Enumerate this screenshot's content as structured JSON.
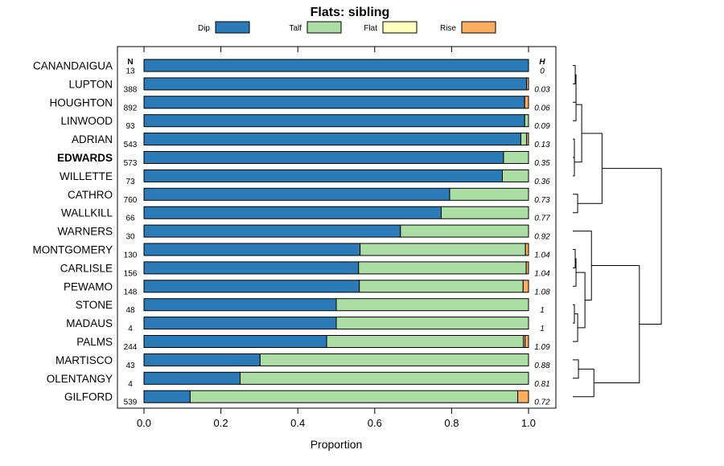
{
  "chart_data": {
    "type": "bar",
    "orientation": "horizontal",
    "stacked": true,
    "title": "Flats: sibling",
    "xlabel": "Proportion",
    "ylabel": "",
    "xlim": [
      0,
      1
    ],
    "xticks": [
      "0.0",
      "0.2",
      "0.4",
      "0.6",
      "0.8",
      "1.0"
    ],
    "legend": {
      "placement": "top",
      "entries": [
        {
          "name": "Dip",
          "color": "#2b7bb9"
        },
        {
          "name": "Talf",
          "color": "#abdda4"
        },
        {
          "name": "Flat",
          "color": "#ffffbf"
        },
        {
          "name": "Rise",
          "color": "#fdae61"
        }
      ]
    },
    "n_header": "N",
    "h_header": "H",
    "categories": [
      {
        "name": "CANANDAIGUA",
        "bold": false,
        "n": "13",
        "h": "0",
        "values": [
          1.0,
          0.0,
          0.0,
          0.0
        ]
      },
      {
        "name": "LUPTON",
        "bold": false,
        "n": "388",
        "h": "0.03",
        "values": [
          0.995,
          0.0,
          0.0,
          0.005
        ]
      },
      {
        "name": "HOUGHTON",
        "bold": false,
        "n": "892",
        "h": "0.06",
        "values": [
          0.99,
          0.0,
          0.0,
          0.01
        ]
      },
      {
        "name": "LINWOOD",
        "bold": false,
        "n": "93",
        "h": "0.09",
        "values": [
          0.99,
          0.01,
          0.0,
          0.0
        ]
      },
      {
        "name": "ADRIAN",
        "bold": false,
        "n": "543",
        "h": "0.13",
        "values": [
          0.98,
          0.015,
          0.0,
          0.005
        ]
      },
      {
        "name": "EDWARDS",
        "bold": true,
        "n": "573",
        "h": "0.35",
        "values": [
          0.935,
          0.065,
          0.0,
          0.0
        ]
      },
      {
        "name": "WILLETTE",
        "bold": false,
        "n": "73",
        "h": "0.36",
        "values": [
          0.932,
          0.068,
          0.0,
          0.0
        ]
      },
      {
        "name": "CATHRO",
        "bold": false,
        "n": "760",
        "h": "0.73",
        "values": [
          0.795,
          0.205,
          0.0,
          0.0
        ]
      },
      {
        "name": "WALLKILL",
        "bold": false,
        "n": "66",
        "h": "0.77",
        "values": [
          0.773,
          0.227,
          0.0,
          0.0
        ]
      },
      {
        "name": "WARNERS",
        "bold": false,
        "n": "30",
        "h": "0.92",
        "values": [
          0.667,
          0.333,
          0.0,
          0.0
        ]
      },
      {
        "name": "MONTGOMERY",
        "bold": false,
        "n": "130",
        "h": "1.04",
        "values": [
          0.562,
          0.43,
          0.0,
          0.008
        ]
      },
      {
        "name": "CARLISLE",
        "bold": false,
        "n": "156",
        "h": "1.04",
        "values": [
          0.558,
          0.436,
          0.0,
          0.006
        ]
      },
      {
        "name": "PEWAMO",
        "bold": false,
        "n": "148",
        "h": "1.08",
        "values": [
          0.56,
          0.426,
          0.0,
          0.014
        ]
      },
      {
        "name": "STONE",
        "bold": false,
        "n": "48",
        "h": "1",
        "values": [
          0.5,
          0.5,
          0.0,
          0.0
        ]
      },
      {
        "name": "MADAUS",
        "bold": false,
        "n": "4",
        "h": "1",
        "values": [
          0.5,
          0.5,
          0.0,
          0.0
        ]
      },
      {
        "name": "PALMS",
        "bold": false,
        "n": "244",
        "h": "1.09",
        "values": [
          0.475,
          0.512,
          0.004,
          0.009
        ]
      },
      {
        "name": "MARTISCO",
        "bold": false,
        "n": "43",
        "h": "0.88",
        "values": [
          0.302,
          0.698,
          0.0,
          0.0
        ]
      },
      {
        "name": "OLENTANGY",
        "bold": false,
        "n": "4",
        "h": "0.81",
        "values": [
          0.25,
          0.75,
          0.0,
          0.0
        ]
      },
      {
        "name": "GILFORD",
        "bold": false,
        "n": "539",
        "h": "0.72",
        "values": [
          0.12,
          0.852,
          0.0,
          0.028
        ]
      }
    ]
  }
}
